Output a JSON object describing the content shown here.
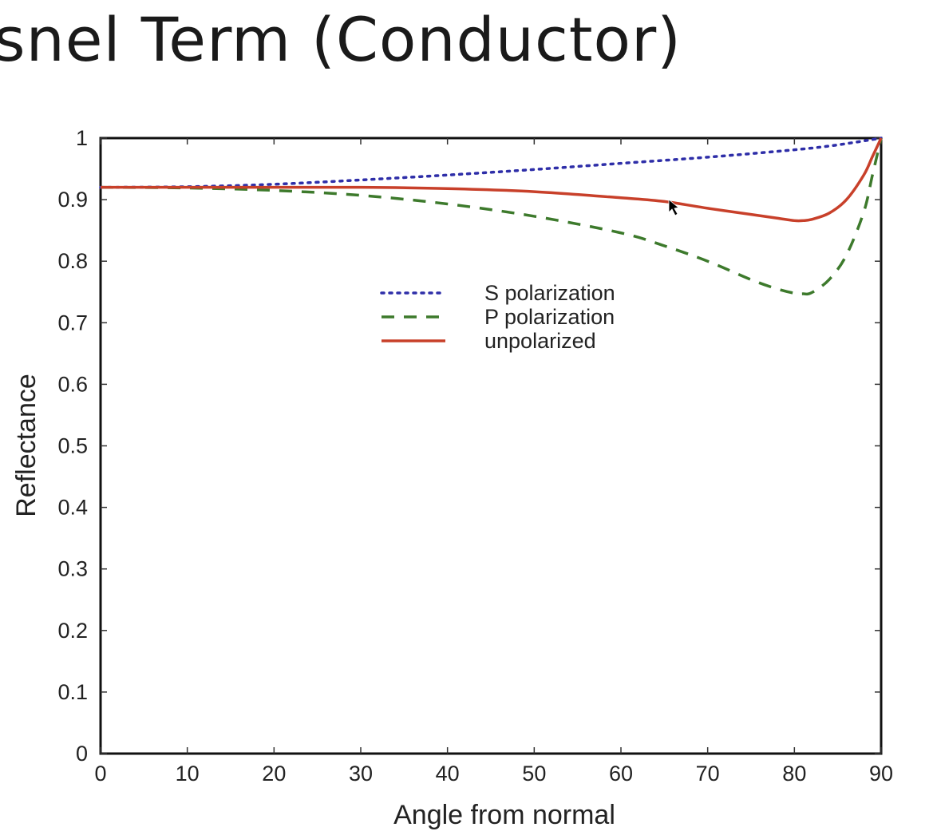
{
  "slide": {
    "title": "snel Term (Conductor)"
  },
  "colors": {
    "s": "#2e2ea8",
    "p": "#3d7a2c",
    "unpolarized": "#c8402a",
    "axis": "#111111"
  },
  "chart_data": {
    "type": "line",
    "xlabel": "Angle from normal",
    "ylabel": "Reflectance",
    "xlim": [
      0,
      90
    ],
    "ylim": [
      0,
      1
    ],
    "xticks": [
      0,
      10,
      20,
      30,
      40,
      50,
      60,
      70,
      80,
      90
    ],
    "yticks": [
      0,
      0.1,
      0.2,
      0.3,
      0.4,
      0.5,
      0.6,
      0.7,
      0.8,
      0.9,
      1
    ],
    "xtick_labels": [
      "0",
      "10",
      "20",
      "30",
      "40",
      "50",
      "60",
      "70",
      "80",
      "90"
    ],
    "ytick_labels": [
      "0",
      "0.1",
      "0.2",
      "0.3",
      "0.4",
      "0.5",
      "0.6",
      "0.7",
      "0.8",
      "0.9",
      "1"
    ],
    "grid": false,
    "legend_position": "upper-center",
    "series": [
      {
        "name": "S polarization",
        "style": "dotted",
        "x": [
          0,
          10,
          20,
          30,
          40,
          50,
          60,
          70,
          80,
          85,
          90
        ],
        "y": [
          0.92,
          0.921,
          0.925,
          0.932,
          0.94,
          0.949,
          0.959,
          0.969,
          0.981,
          0.989,
          1.0
        ]
      },
      {
        "name": "P polarization",
        "style": "dashed",
        "x": [
          0,
          10,
          20,
          30,
          40,
          50,
          60,
          65,
          70,
          75,
          78,
          80,
          81,
          82,
          84,
          86,
          88,
          89,
          90
        ],
        "y": [
          0.92,
          0.919,
          0.915,
          0.907,
          0.893,
          0.873,
          0.846,
          0.825,
          0.8,
          0.77,
          0.755,
          0.748,
          0.747,
          0.749,
          0.77,
          0.81,
          0.88,
          0.94,
          1.0
        ]
      },
      {
        "name": "unpolarized",
        "style": "solid",
        "x": [
          0,
          10,
          20,
          30,
          40,
          50,
          60,
          65,
          70,
          75,
          78,
          80,
          81,
          82,
          84,
          86,
          88,
          89,
          90
        ],
        "y": [
          0.92,
          0.92,
          0.92,
          0.92,
          0.918,
          0.913,
          0.903,
          0.897,
          0.886,
          0.876,
          0.87,
          0.866,
          0.866,
          0.868,
          0.878,
          0.9,
          0.94,
          0.97,
          1.0
        ]
      }
    ]
  }
}
